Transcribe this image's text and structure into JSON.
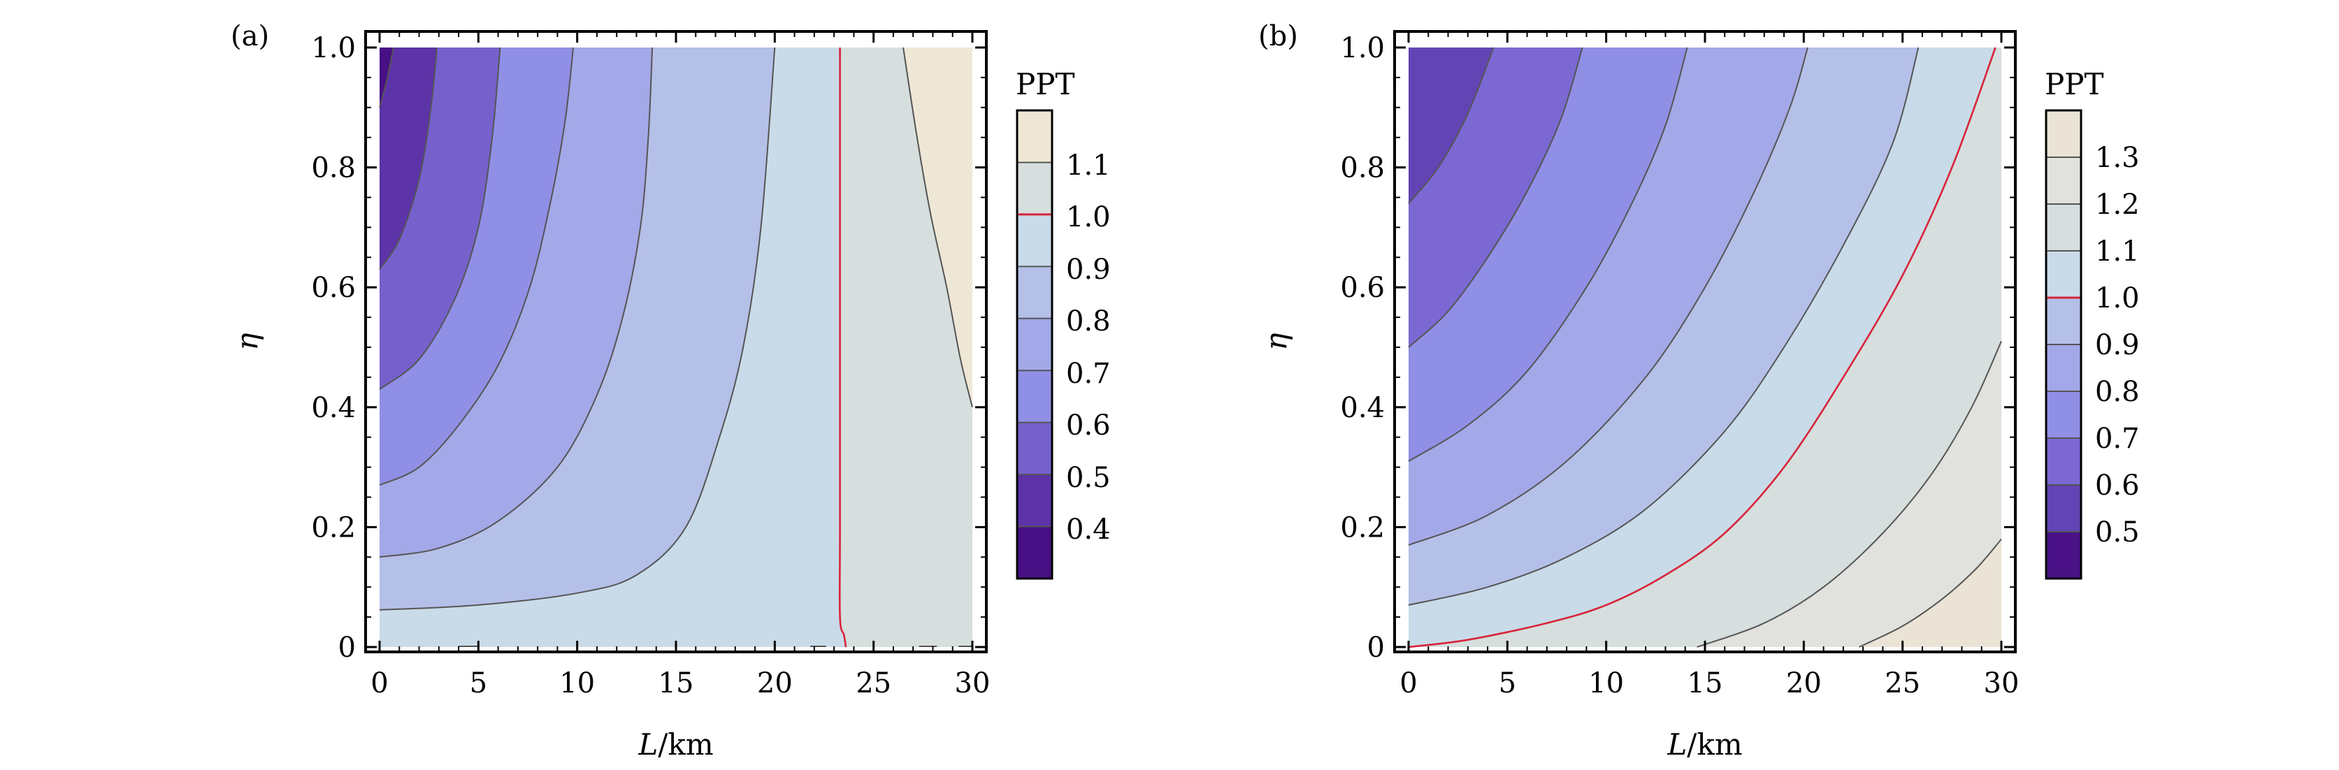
{
  "panels": [
    {
      "label": "(a)",
      "xlabel_var": "L",
      "xlabel_unit": "/km",
      "ylabel": "η",
      "legend_title": "PPT",
      "legend_labels": [
        "1.1",
        "1.0",
        "0.9",
        "0.8",
        "0.7",
        "0.6",
        "0.5",
        "0.4"
      ]
    },
    {
      "label": "(b)",
      "xlabel_var": "L",
      "xlabel_unit": "/km",
      "ylabel": "η",
      "legend_title": "PPT",
      "legend_labels": [
        "1.3",
        "1.2",
        "1.1",
        "1.0",
        "0.9",
        "0.8",
        "0.7",
        "0.6",
        "0.5"
      ]
    }
  ],
  "colors": {
    "contour_line": "#555555",
    "critical_line": "#d8243a",
    "frame": "#000000"
  },
  "chart_data": [
    {
      "type": "contour",
      "title": "(a)",
      "xlabel": "L/km",
      "ylabel": "η",
      "xlim": [
        0,
        30
      ],
      "ylim": [
        0,
        1.0
      ],
      "xticks": [
        "0",
        "5",
        "10",
        "15",
        "20",
        "25",
        "30"
      ],
      "yticks": [
        "0",
        "0.2",
        "0.4",
        "0.6",
        "0.8",
        "1.0"
      ],
      "colorbar_title": "PPT",
      "colorbar_min": 0.3,
      "colorbar_max": 1.2,
      "colorbar_ticks": [
        0.4,
        0.5,
        0.6,
        0.7,
        0.8,
        0.9,
        1.0,
        1.1
      ],
      "critical_level": 1.0,
      "fills": [
        {
          "level": 1.15,
          "color": "#efe7d6"
        },
        {
          "level": 1.05,
          "color": "#d6dede"
        },
        {
          "level": 0.95,
          "color": "#c9dbe8"
        },
        {
          "level": 0.85,
          "color": "#b5c0e8"
        },
        {
          "level": 0.75,
          "color": "#a3a8e8"
        },
        {
          "level": 0.65,
          "color": "#908fe6"
        },
        {
          "level": 0.55,
          "color": "#7661cc"
        },
        {
          "level": 0.45,
          "color": "#5d33a8"
        },
        {
          "level": 0.35,
          "color": "#471084"
        }
      ],
      "contours": [
        {
          "level": 1.1,
          "points": [
            [
              26.5,
              1.0
            ],
            [
              27.2,
              0.85
            ],
            [
              27.9,
              0.72
            ],
            [
              28.7,
              0.6
            ],
            [
              29.4,
              0.48
            ],
            [
              30,
              0.4
            ]
          ]
        },
        {
          "level": 1.0,
          "critical": true,
          "points": [
            [
              23.3,
              1.0
            ],
            [
              23.3,
              0.6
            ],
            [
              23.3,
              0.2
            ],
            [
              23.3,
              0.05
            ],
            [
              23.5,
              0.02
            ],
            [
              23.6,
              0.0
            ]
          ]
        },
        {
          "level": 0.9,
          "points": [
            [
              0,
              0.062
            ],
            [
              5,
              0.07
            ],
            [
              10,
              0.09
            ],
            [
              13,
              0.12
            ],
            [
              15.5,
              0.2
            ],
            [
              17.2,
              0.35
            ],
            [
              18.4,
              0.5
            ],
            [
              19.3,
              0.7
            ],
            [
              20,
              1.0
            ]
          ]
        },
        {
          "level": 0.8,
          "points": [
            [
              0,
              0.15
            ],
            [
              3,
              0.165
            ],
            [
              6,
              0.21
            ],
            [
              9,
              0.3
            ],
            [
              11,
              0.42
            ],
            [
              12.3,
              0.55
            ],
            [
              13.2,
              0.7
            ],
            [
              13.6,
              0.85
            ],
            [
              13.8,
              1.0
            ]
          ]
        },
        {
          "level": 0.7,
          "points": [
            [
              0,
              0.27
            ],
            [
              2,
              0.3
            ],
            [
              4,
              0.37
            ],
            [
              6,
              0.47
            ],
            [
              7.6,
              0.6
            ],
            [
              8.7,
              0.75
            ],
            [
              9.4,
              0.88
            ],
            [
              9.8,
              1.0
            ]
          ]
        },
        {
          "level": 0.6,
          "points": [
            [
              0,
              0.43
            ],
            [
              2,
              0.48
            ],
            [
              3.8,
              0.58
            ],
            [
              5,
              0.7
            ],
            [
              5.7,
              0.85
            ],
            [
              6.1,
              1.0
            ]
          ]
        },
        {
          "level": 0.5,
          "points": [
            [
              0,
              0.63
            ],
            [
              1,
              0.68
            ],
            [
              2,
              0.78
            ],
            [
              2.6,
              0.9
            ],
            [
              2.9,
              1.0
            ]
          ]
        },
        {
          "level": 0.4,
          "points": [
            [
              0,
              0.9
            ],
            [
              0.4,
              0.95
            ],
            [
              0.7,
              1.0
            ]
          ]
        }
      ],
      "markers": [
        {
          "label": "0.4",
          "value": 0.4
        },
        {
          "label": "0.5",
          "value": 0.5
        },
        {
          "label": "0.6",
          "value": 0.6
        },
        {
          "label": "0.7",
          "value": 0.7
        },
        {
          "label": "0.8",
          "value": 0.8
        },
        {
          "label": "0.9",
          "value": 0.9
        },
        {
          "label": "1.0",
          "value": 1.0
        },
        {
          "label": "1.1",
          "value": 1.1
        }
      ]
    },
    {
      "type": "contour",
      "title": "(b)",
      "xlabel": "L/km",
      "ylabel": "η",
      "xlim": [
        0,
        30
      ],
      "ylim": [
        0,
        1.0
      ],
      "xticks": [
        "0",
        "5",
        "10",
        "15",
        "20",
        "25",
        "30"
      ],
      "yticks": [
        "0",
        "0.2",
        "0.4",
        "0.6",
        "0.8",
        "1.0"
      ],
      "colorbar_title": "PPT",
      "colorbar_min": 0.4,
      "colorbar_max": 1.4,
      "colorbar_ticks": [
        0.5,
        0.6,
        0.7,
        0.8,
        0.9,
        1.0,
        1.1,
        1.2,
        1.3
      ],
      "critical_level": 1.0,
      "fills": [
        {
          "level": 1.35,
          "color": "#ebe4d6"
        },
        {
          "level": 1.25,
          "color": "#e1e1dd"
        },
        {
          "level": 1.15,
          "color": "#d6dede"
        },
        {
          "level": 1.05,
          "color": "#c9dbe8"
        },
        {
          "level": 0.95,
          "color": "#b5c0e8"
        },
        {
          "level": 0.85,
          "color": "#a3a8e8"
        },
        {
          "level": 0.75,
          "color": "#908fe6"
        },
        {
          "level": 0.65,
          "color": "#7b68d2"
        },
        {
          "level": 0.55,
          "color": "#6344b4"
        },
        {
          "level": 0.45,
          "color": "#4a1286"
        }
      ],
      "contours": [
        {
          "level": 1.3,
          "points": [
            [
              22.8,
              0.0
            ],
            [
              25,
              0.035
            ],
            [
              27,
              0.08
            ],
            [
              28.7,
              0.13
            ],
            [
              30,
              0.18
            ]
          ]
        },
        {
          "level": 1.2,
          "points": [
            [
              14.6,
              0.0
            ],
            [
              18,
              0.04
            ],
            [
              21,
              0.1
            ],
            [
              24,
              0.19
            ],
            [
              26.5,
              0.29
            ],
            [
              28.5,
              0.4
            ],
            [
              30,
              0.51
            ]
          ]
        },
        {
          "level": 1.0,
          "critical": true,
          "points": [
            [
              0,
              0.0
            ],
            [
              3,
              0.012
            ],
            [
              7,
              0.04
            ],
            [
              10,
              0.07
            ],
            [
              13,
              0.12
            ],
            [
              16,
              0.19
            ],
            [
              19,
              0.3
            ],
            [
              22,
              0.45
            ],
            [
              25,
              0.62
            ],
            [
              27.5,
              0.8
            ],
            [
              29.7,
              1.0
            ]
          ]
        },
        {
          "level": 0.9,
          "points": [
            [
              0,
              0.07
            ],
            [
              4,
              0.1
            ],
            [
              8,
              0.15
            ],
            [
              12,
              0.23
            ],
            [
              16,
              0.36
            ],
            [
              19,
              0.5
            ],
            [
              22,
              0.67
            ],
            [
              24.5,
              0.84
            ],
            [
              25.8,
              1.0
            ]
          ]
        },
        {
          "level": 0.8,
          "points": [
            [
              0,
              0.17
            ],
            [
              4,
              0.22
            ],
            [
              8,
              0.31
            ],
            [
              12,
              0.45
            ],
            [
              15,
              0.6
            ],
            [
              17.5,
              0.76
            ],
            [
              19.3,
              0.9
            ],
            [
              20.2,
              1.0
            ]
          ]
        },
        {
          "level": 0.7,
          "points": [
            [
              0,
              0.31
            ],
            [
              3,
              0.37
            ],
            [
              6,
              0.46
            ],
            [
              9,
              0.6
            ],
            [
              11.3,
              0.74
            ],
            [
              13,
              0.87
            ],
            [
              14.1,
              1.0
            ]
          ]
        },
        {
          "level": 0.6,
          "points": [
            [
              0,
              0.5
            ],
            [
              2,
              0.56
            ],
            [
              4,
              0.65
            ],
            [
              6,
              0.76
            ],
            [
              7.7,
              0.88
            ],
            [
              8.8,
              1.0
            ]
          ]
        },
        {
          "level": 0.5,
          "points": [
            [
              0,
              0.74
            ],
            [
              1.5,
              0.8
            ],
            [
              3,
              0.89
            ],
            [
              4.3,
              1.0
            ]
          ]
        }
      ],
      "markers": [
        {
          "label": "0.5",
          "value": 0.5
        },
        {
          "label": "0.6",
          "value": 0.6
        },
        {
          "label": "0.7",
          "value": 0.7
        },
        {
          "label": "0.8",
          "value": 0.8
        },
        {
          "label": "0.9",
          "value": 0.9
        },
        {
          "label": "1.0",
          "value": 1.0
        },
        {
          "label": "1.1",
          "value": 1.1
        },
        {
          "label": "1.2",
          "value": 1.2
        },
        {
          "label": "1.3",
          "value": 1.3
        }
      ]
    }
  ]
}
